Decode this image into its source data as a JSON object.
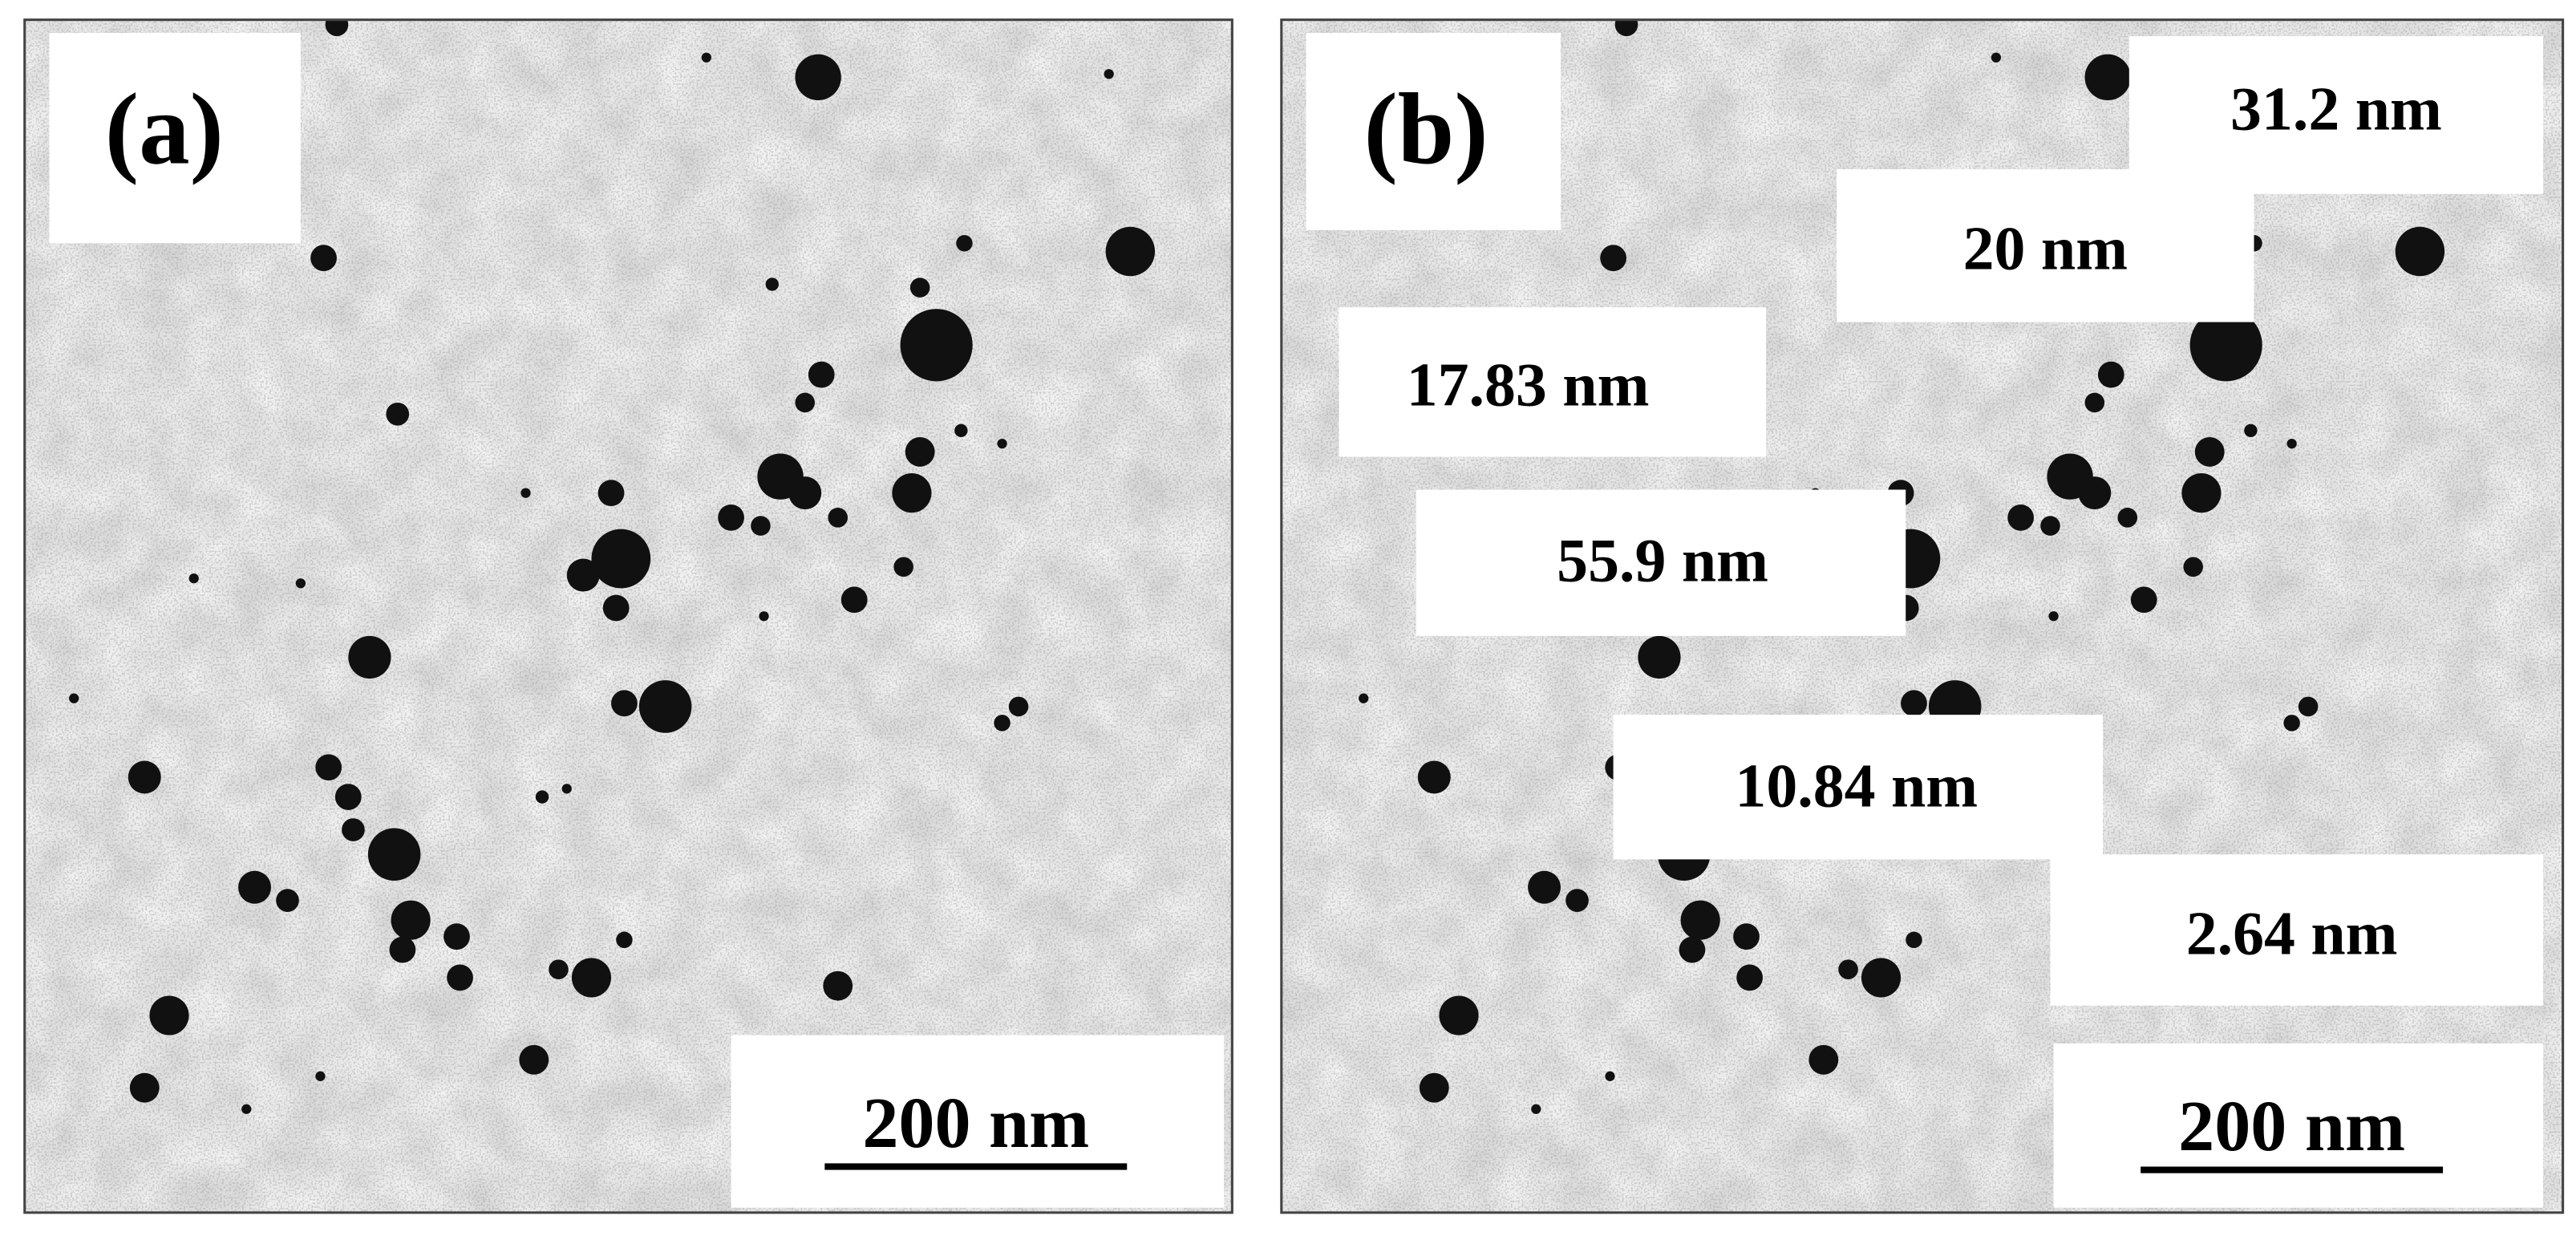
{
  "panels": [
    {
      "label": "(a)",
      "scale_bar": "200 nm"
    },
    {
      "label": "(b)",
      "scale_bar": "200 nm",
      "measurements": [
        "31.2 nm",
        "20 nm",
        "17.83 nm",
        "55.9 nm",
        "10.84 nm",
        "2.64 nm"
      ]
    }
  ]
}
